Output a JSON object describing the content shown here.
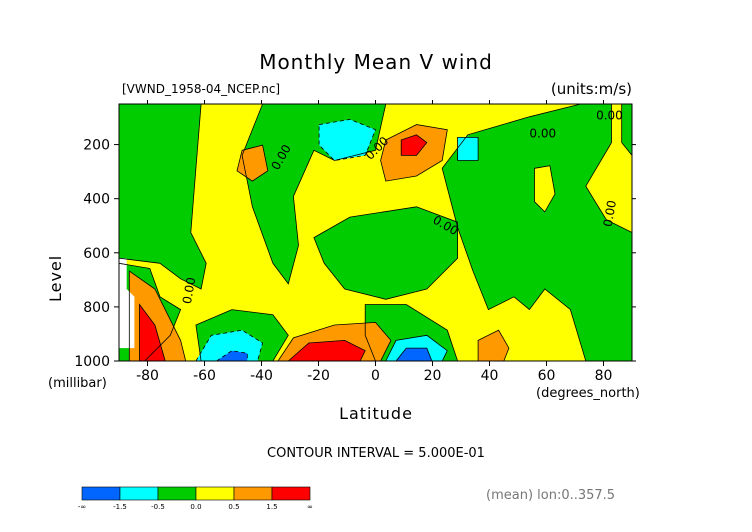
{
  "header": {
    "title": "Monthly Mean V wind",
    "file": "[VWND_1958-04_NCEP.nc]",
    "units": "(units:m/s)"
  },
  "footer": {
    "contour_interval": "CONTOUR INTERVAL = 5.000E-01",
    "mean": "(mean) lon:0..357.5"
  },
  "chart_data": {
    "type": "heatmap",
    "title": "Monthly Mean V wind",
    "xlabel": "Latitude",
    "xunits": "(degrees_north)",
    "ylabel": "Level",
    "yunits": "(millibar)",
    "xlim": [
      -90,
      90
    ],
    "ylim": [
      1000,
      50
    ],
    "x_ticks": [
      -80,
      -60,
      -40,
      -20,
      0,
      20,
      40,
      60,
      80
    ],
    "y_ticks": [
      200,
      400,
      600,
      800,
      1000
    ],
    "contour_interval": 0.5,
    "contour_labels": [
      "0.00",
      "0.00",
      "0.00",
      "0.00",
      "0.00",
      "0.00",
      "0.00"
    ],
    "legend": {
      "placement": "bottom",
      "colors": [
        "#0066ff",
        "#00ffff",
        "#00cc00",
        "#ffff00",
        "#ff9900",
        "#ff0000"
      ],
      "labels": [
        "-∞",
        "-1.5",
        "-0.5",
        "0.0",
        "0.5",
        "1.5",
        "∞"
      ]
    },
    "layer_colors": {
      "neg_deep": "#0066ff",
      "neg_mid": "#00ffff",
      "neg_small": "#00cc00",
      "pos_small": "#ffff00",
      "pos_mid": "#ff9900",
      "pos_deep": "#ff0000"
    }
  }
}
